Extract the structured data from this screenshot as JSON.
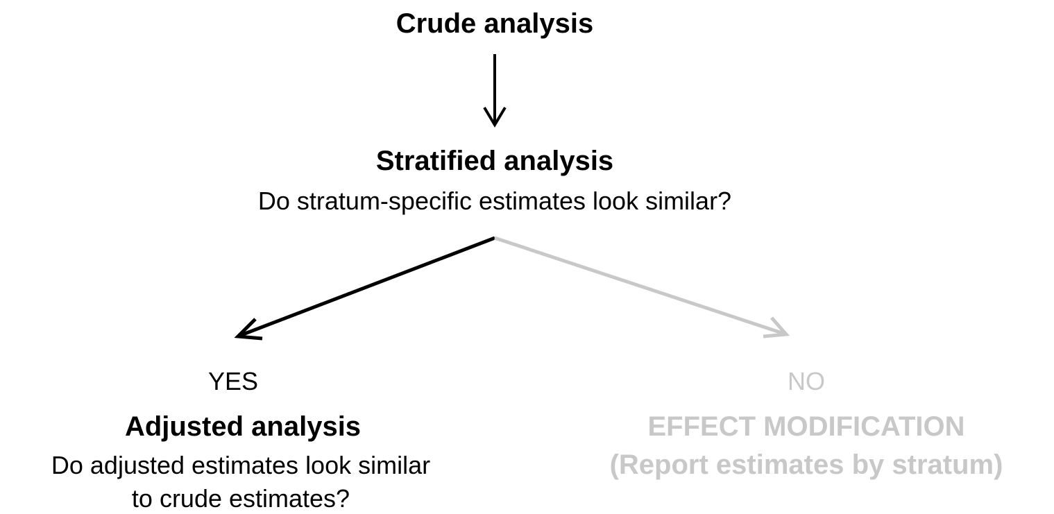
{
  "nodes": [
    {
      "label": "Crude analysis"
    },
    {
      "label": "Stratified analysis",
      "question": "Do stratum-specific estimates look similar?"
    },
    {
      "answer": "YES",
      "label": "Adjusted analysis",
      "question": [
        "Do adjusted estimates look similar",
        "to crude estimates?"
      ]
    },
    {
      "answer": "NO",
      "label": "EFFECT MODIFICATION",
      "note": "(Report estimates by stratum)"
    }
  ]
}
